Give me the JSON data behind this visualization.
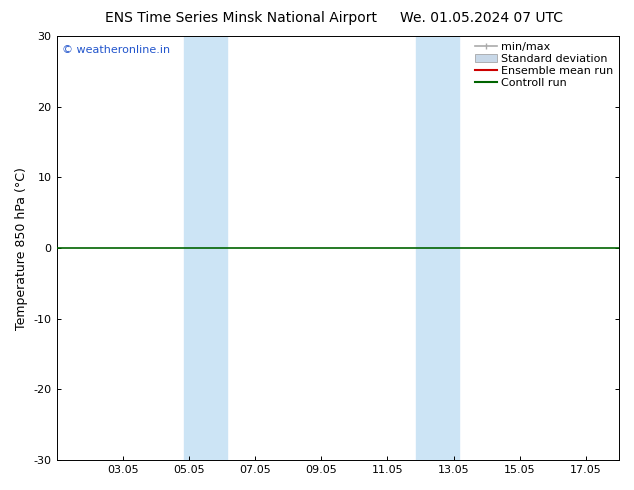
{
  "title_left": "ENS Time Series Minsk National Airport",
  "title_right": "We. 01.05.2024 07 UTC",
  "ylabel": "Temperature 850 hPa (°C)",
  "ylim": [
    -30,
    30
  ],
  "yticks": [
    -30,
    -20,
    -10,
    0,
    10,
    20,
    30
  ],
  "xtick_labels": [
    "03.05",
    "05.05",
    "07.05",
    "09.05",
    "11.05",
    "13.05",
    "15.05",
    "17.05"
  ],
  "xtick_positions": [
    2,
    4,
    6,
    8,
    10,
    12,
    14,
    16
  ],
  "xlim": [
    0,
    17
  ],
  "shaded_bands": [
    {
      "x_start": 3.85,
      "x_end": 5.15
    },
    {
      "x_start": 10.85,
      "x_end": 12.15
    }
  ],
  "shaded_color": "#cce4f5",
  "zero_line_value": 0,
  "control_run_color": "#006400",
  "ensemble_mean_color": "#cc0000",
  "background_color": "#ffffff",
  "plot_bg_color": "#ffffff",
  "watermark_text": "© weatheronline.in",
  "watermark_color": "#2255cc",
  "legend_minmax_color": "#aaaaaa",
  "legend_std_color": "#c8d8e8",
  "title_fontsize": 10,
  "axis_label_fontsize": 9,
  "tick_fontsize": 8,
  "legend_fontsize": 8
}
